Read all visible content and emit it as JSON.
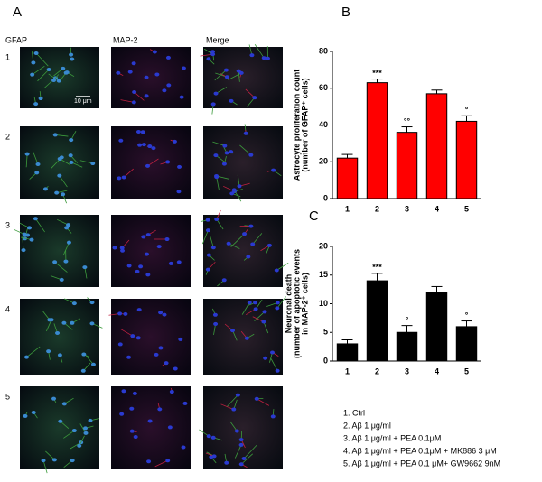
{
  "panel_labels": [
    "A",
    "B",
    "C"
  ],
  "image_grid": {
    "columns": [
      "GFAP",
      "MAP-2",
      "Merge"
    ],
    "rows": [
      "1",
      "2",
      "3",
      "4",
      "5"
    ],
    "scale_bar": "10 μm"
  },
  "legend_items": [
    "1.  Ctrl",
    "2.  Aβ 1 μg/ml",
    "3.  Aβ 1 μg/ml + PEA 0.1μM",
    "4.  Aβ 1 μg/ml + PEA 0.1μM + MK886 3 μM",
    "5.  Aβ 1 μg/ml + PEA 0.1 μM+ GW9662 9nM"
  ],
  "chart_data": [
    {
      "type": "bar",
      "y_label": [
        "Astrocyte proliferation count",
        "(number of GFAP⁺ cells)"
      ],
      "categories": [
        "1",
        "2",
        "3",
        "4",
        "5"
      ],
      "values": [
        22,
        63,
        36,
        57,
        42
      ],
      "errors": [
        2,
        2,
        3,
        2,
        3
      ],
      "annotations": [
        null,
        "***",
        "°°",
        null,
        "°"
      ],
      "color": "#ff0000",
      "ylim": [
        0,
        80
      ],
      "yticks": [
        0,
        20,
        40,
        60,
        80
      ]
    },
    {
      "type": "bar",
      "y_label": [
        "Neuronal death",
        "(number of apoptotic events",
        "in MAP-2⁺ cells)"
      ],
      "categories": [
        "1",
        "2",
        "3",
        "4",
        "5"
      ],
      "values": [
        3,
        14,
        5,
        12,
        6
      ],
      "errors": [
        0.7,
        1.3,
        1.2,
        1,
        1
      ],
      "annotations": [
        null,
        "***",
        "°",
        null,
        "°"
      ],
      "color": "#000000",
      "ylim": [
        0,
        20
      ],
      "yticks": [
        0,
        5,
        10,
        15,
        20
      ]
    }
  ]
}
